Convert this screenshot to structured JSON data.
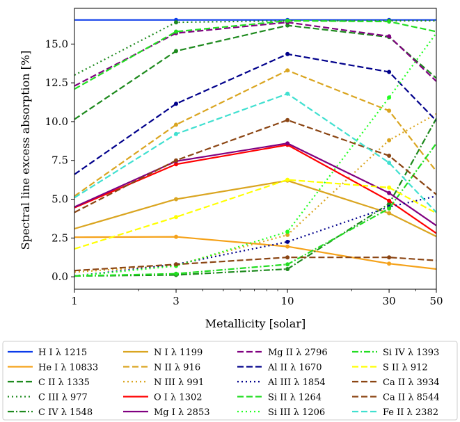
{
  "chart_data": {
    "type": "line",
    "xlabel": "Metallicity [solar]",
    "ylabel": "Spectral line excess absorption [%]",
    "xscale": "log",
    "x": [
      1,
      3,
      10,
      30,
      50
    ],
    "xticks": [
      "1",
      "3",
      "10",
      "30",
      "50"
    ],
    "yticks": [
      "0.0",
      "2.5",
      "5.0",
      "7.5",
      "10.0",
      "12.5",
      "15.0"
    ],
    "ylim": [
      -0.8,
      17.3
    ],
    "xlim": [
      1,
      50
    ],
    "grid": false,
    "legend_position": "below",
    "series": [
      {
        "name": "H I λ 1215",
        "color": "#0b3bea",
        "dash": "solid",
        "values": [
          16.55,
          16.55,
          16.55,
          16.55,
          16.55
        ]
      },
      {
        "name": "He I λ 10833",
        "color": "#f5a21a",
        "dash": "solid",
        "values": [
          2.55,
          2.58,
          1.95,
          0.85,
          0.5
        ]
      },
      {
        "name": "C II λ 1335",
        "color": "#1e8a1e",
        "dash": "dashed",
        "values": [
          10.15,
          14.55,
          16.2,
          15.45,
          12.8
        ]
      },
      {
        "name": "C III λ 977",
        "color": "#1e8a1e",
        "dash": "dotted",
        "values": [
          13.0,
          16.4,
          16.5,
          16.5,
          16.5
        ]
      },
      {
        "name": "C IV λ 1548",
        "color": "#1e8a1e",
        "dash": "dashdot",
        "values": [
          0.05,
          0.12,
          0.5,
          4.7,
          10.2
        ]
      },
      {
        "name": "N I λ 1199",
        "color": "#daa520",
        "dash": "solid",
        "values": [
          3.1,
          5.0,
          6.2,
          4.1,
          2.6
        ]
      },
      {
        "name": "N II λ 916",
        "color": "#daa520",
        "dash": "dashed",
        "values": [
          5.2,
          9.8,
          13.3,
          10.7,
          6.8
        ]
      },
      {
        "name": "N III λ 991",
        "color": "#daa520",
        "dash": "dotted",
        "values": [
          0.3,
          0.75,
          2.7,
          8.8,
          10.5
        ]
      },
      {
        "name": "O I λ 1302",
        "color": "#ff0000",
        "dash": "solid",
        "values": [
          4.45,
          7.25,
          8.5,
          4.9,
          2.8
        ]
      },
      {
        "name": "Mg I λ 2853",
        "color": "#800080",
        "dash": "solid",
        "values": [
          4.5,
          7.45,
          8.6,
          5.4,
          3.3
        ]
      },
      {
        "name": "Mg II λ 2796",
        "color": "#800080",
        "dash": "dashed",
        "values": [
          12.3,
          15.7,
          16.4,
          15.5,
          12.6
        ]
      },
      {
        "name": "Al II λ 1670",
        "color": "#00008b",
        "dash": "dashed",
        "values": [
          6.6,
          11.15,
          14.35,
          13.2,
          10.05
        ]
      },
      {
        "name": "Al III λ 1854",
        "color": "#00008b",
        "dash": "dotted",
        "values": [
          0.05,
          0.8,
          2.25,
          4.5,
          5.2
        ]
      },
      {
        "name": "Si II λ 1264",
        "color": "#22dd22",
        "dash": "dashed",
        "values": [
          12.1,
          15.8,
          16.5,
          16.45,
          15.8
        ]
      },
      {
        "name": "Si III λ 1206",
        "color": "#22ff22",
        "dash": "dotted",
        "values": [
          0.05,
          0.7,
          2.9,
          11.55,
          15.7
        ]
      },
      {
        "name": "Si IV λ 1393",
        "color": "#22dd22",
        "dash": "dashdot",
        "values": [
          0.05,
          0.2,
          0.8,
          4.4,
          8.6
        ]
      },
      {
        "name": "S II λ 912",
        "color": "#ffff00",
        "dash": "dashed",
        "values": [
          1.8,
          3.85,
          6.25,
          5.75,
          4.1
        ]
      },
      {
        "name": "Ca II λ 3934",
        "color": "#8b4513",
        "dash": "dashed",
        "values": [
          4.15,
          7.5,
          10.1,
          7.8,
          5.3
        ]
      },
      {
        "name": "Ca II λ 8544",
        "color": "#8b4513",
        "dash": "dashed",
        "values": [
          0.4,
          0.8,
          1.25,
          1.25,
          1.05
        ]
      },
      {
        "name": "Fe II λ 2382",
        "color": "#40e0d0",
        "dash": "dashed",
        "values": [
          5.1,
          9.2,
          11.8,
          7.35,
          4.15
        ]
      }
    ]
  }
}
